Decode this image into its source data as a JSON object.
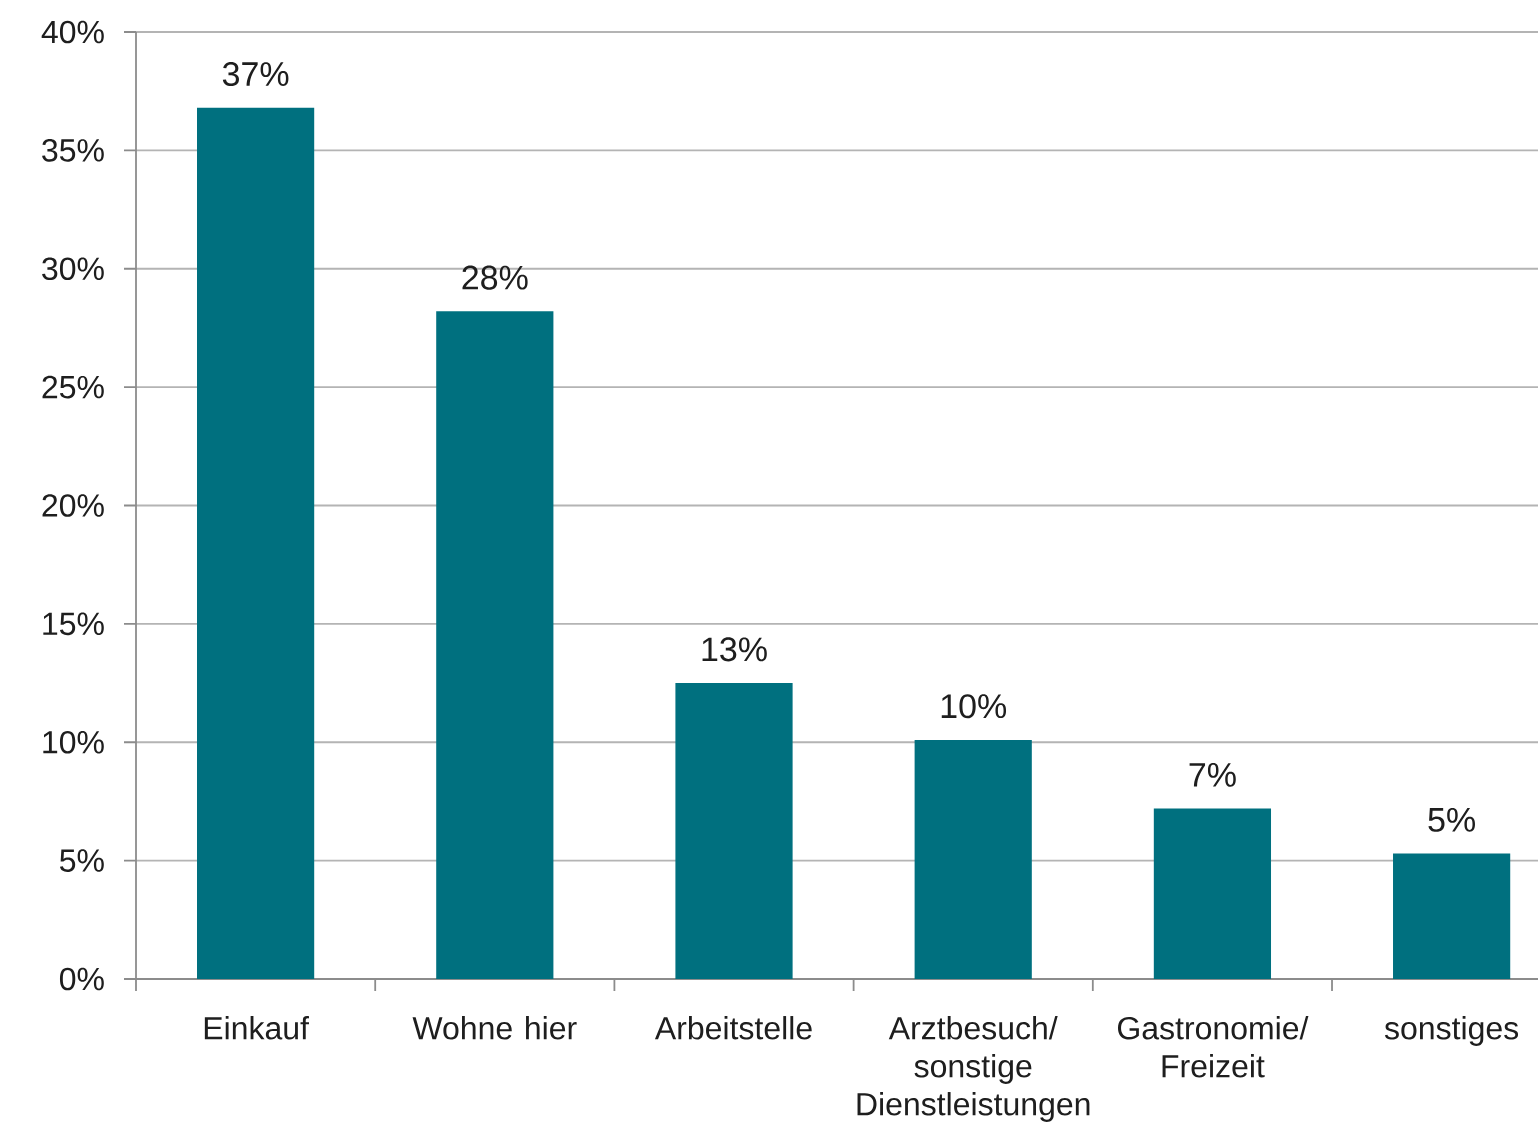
{
  "chart_data": {
    "type": "bar",
    "categories": [
      "Einkauf",
      "Wohne hier",
      "Arbeitstelle",
      "Arztbesuch/ sonstige Dienstleistungen",
      "Gastronomie/ Freizeit",
      "sonstiges"
    ],
    "values": [
      36.8,
      28.2,
      12.5,
      10.1,
      7.2,
      5.3
    ],
    "value_labels": [
      "37%",
      "28%",
      "13%",
      "10%",
      "7%",
      "5%"
    ],
    "color": "#00707f",
    "ylim": [
      0,
      40
    ],
    "yticks": [
      {
        "value": 0,
        "label": "0%"
      },
      {
        "value": 5,
        "label": "5%"
      },
      {
        "value": 10,
        "label": "10%"
      },
      {
        "value": 15,
        "label": "15%"
      },
      {
        "value": 20,
        "label": "20%"
      },
      {
        "value": 25,
        "label": "25%"
      },
      {
        "value": 30,
        "label": "30%"
      },
      {
        "value": 35,
        "label": "35%"
      },
      {
        "value": 40,
        "label": "40%"
      }
    ],
    "grid": "y"
  }
}
